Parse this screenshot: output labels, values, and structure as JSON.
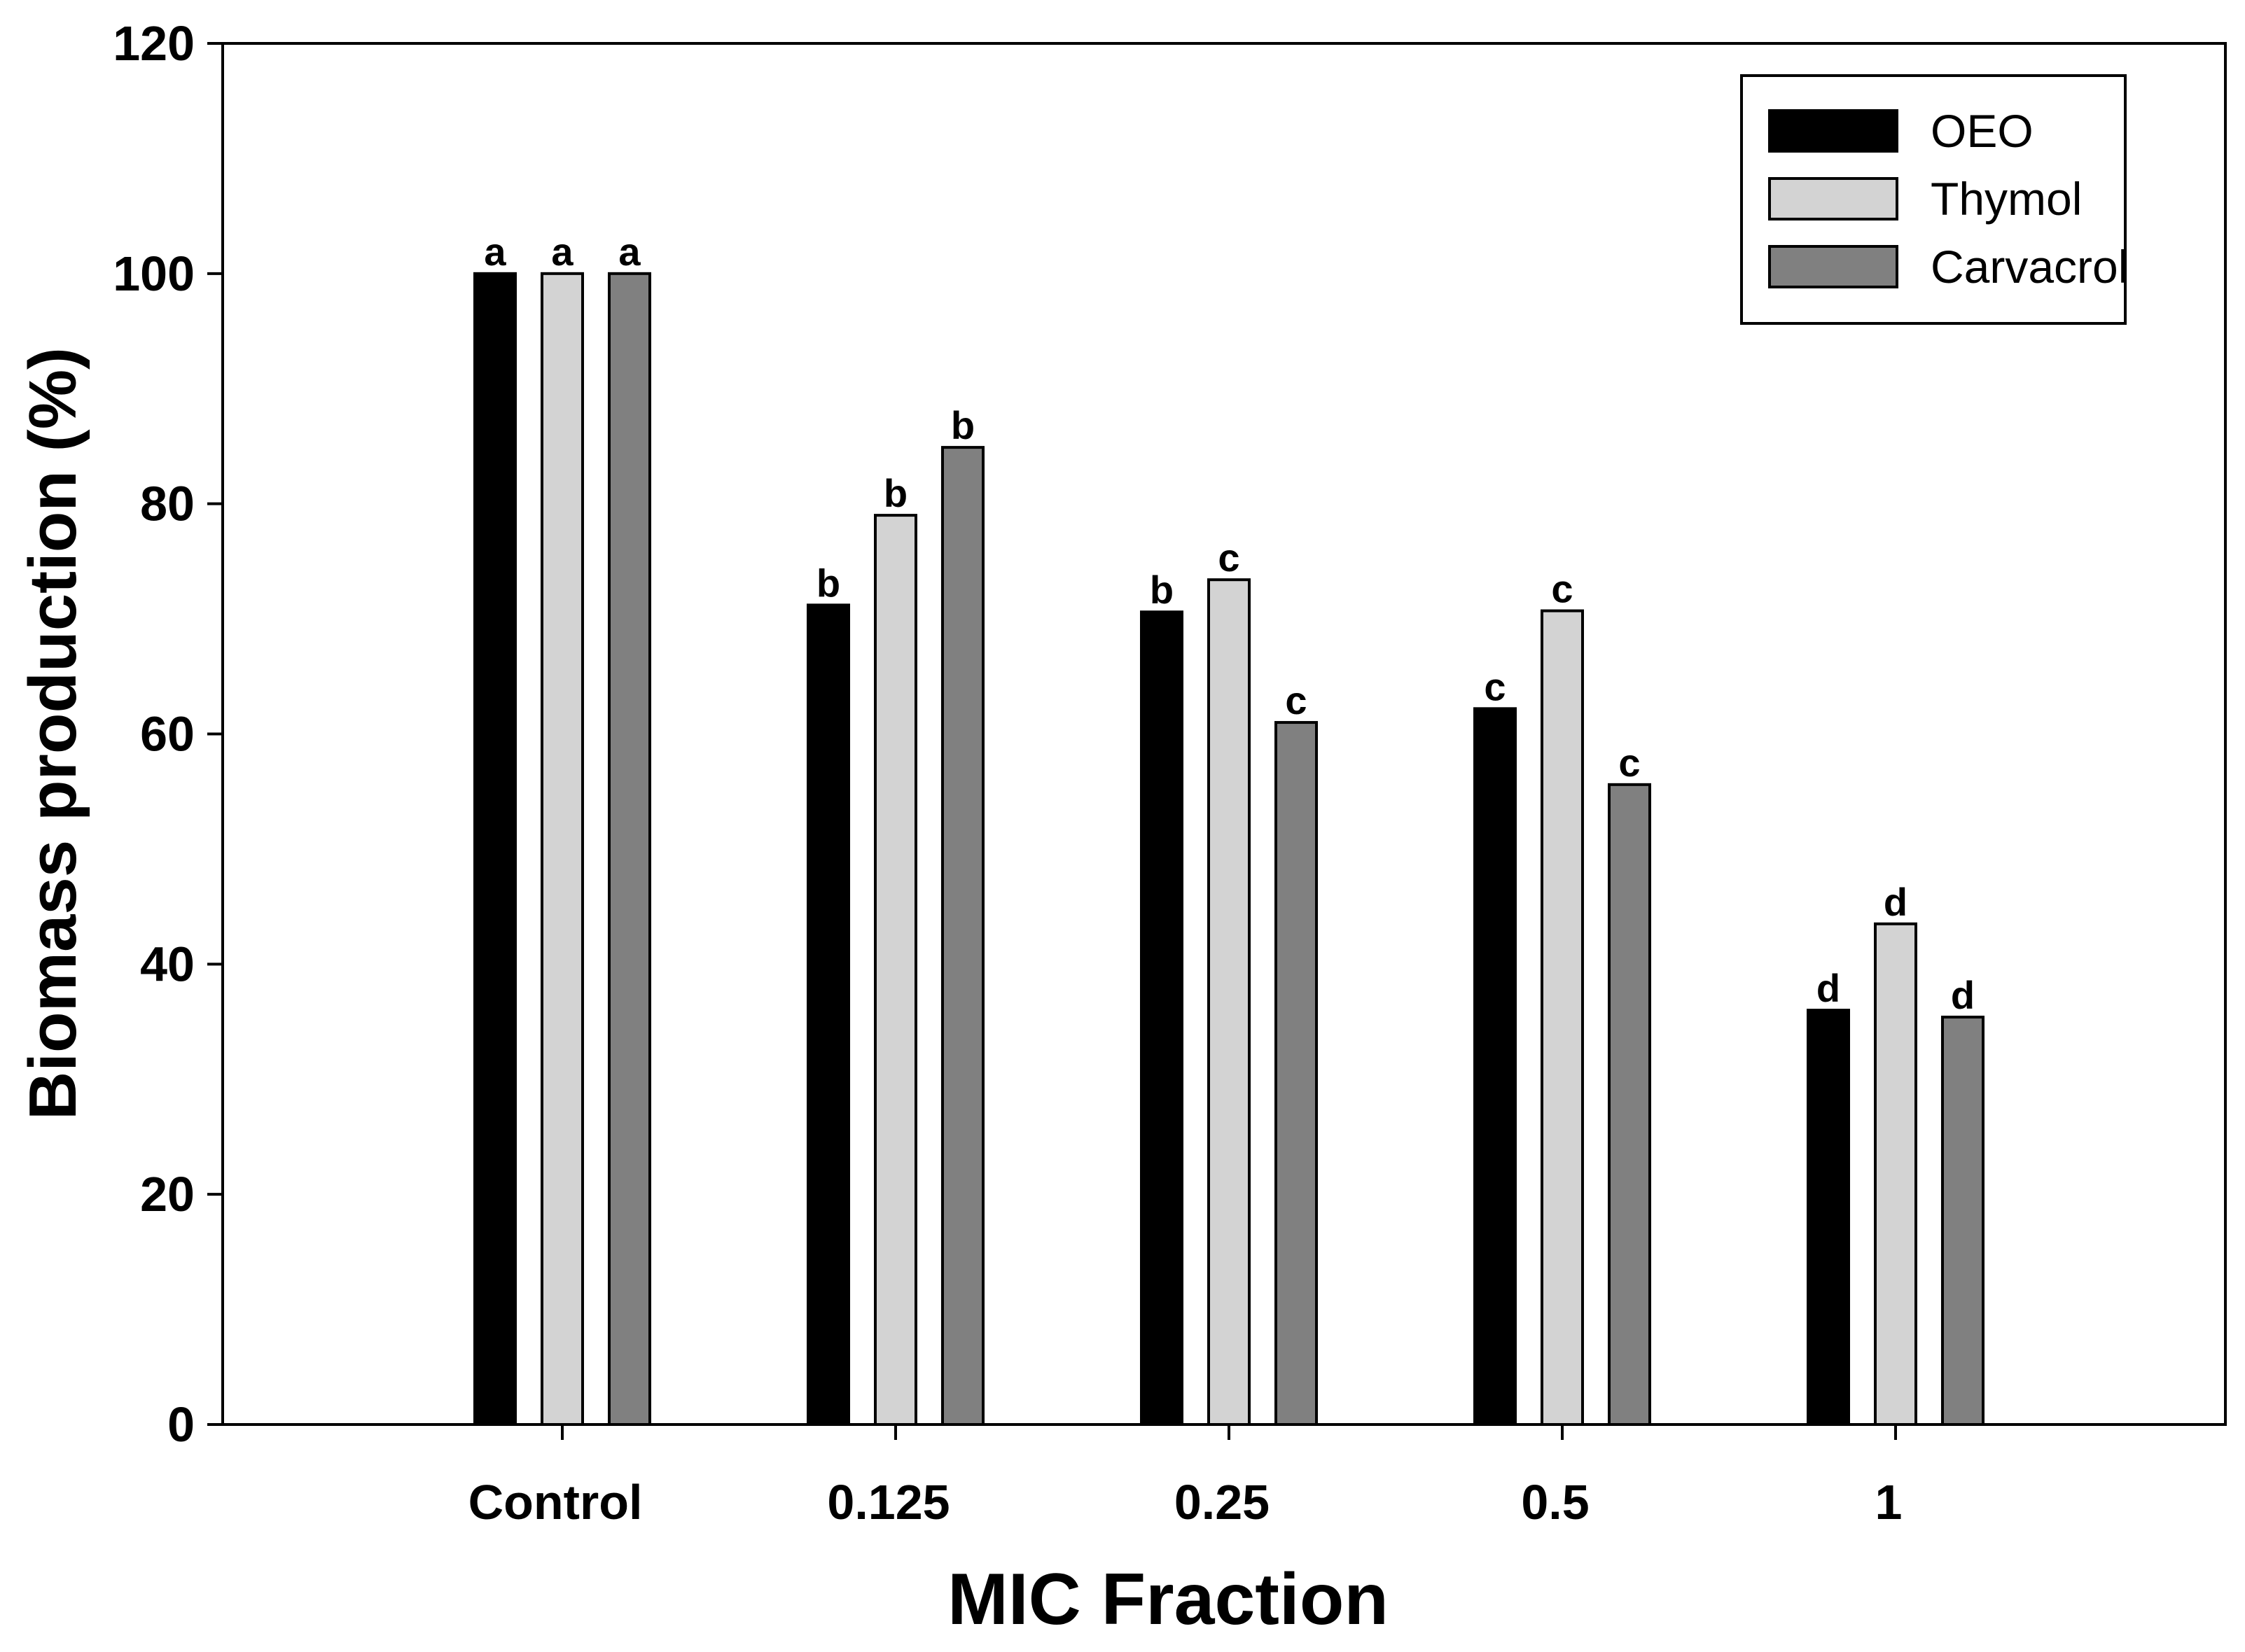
{
  "chart_data": {
    "type": "bar",
    "title": "",
    "xlabel": "MIC Fraction",
    "ylabel": "Biomass production (%)",
    "ylim": [
      0,
      120
    ],
    "yticks": [
      0,
      20,
      40,
      60,
      80,
      100,
      120
    ],
    "grid": false,
    "legend_position": "top-right",
    "categories": [
      "Control",
      "0.125",
      "0.25",
      "0.5",
      "1"
    ],
    "series": [
      {
        "name": "OEO",
        "color": "#000000",
        "values": [
          100,
          71.2,
          70.6,
          62.2,
          36.0
        ],
        "letters": [
          "a",
          "b",
          "b",
          "c",
          "d"
        ]
      },
      {
        "name": "Thymol",
        "color": "#d3d3d3",
        "values": [
          100,
          79.0,
          73.4,
          70.7,
          43.5
        ],
        "letters": [
          "a",
          "b",
          "c",
          "c",
          "d"
        ]
      },
      {
        "name": "Carvacrol",
        "color": "#808080",
        "values": [
          100,
          84.9,
          61.0,
          55.6,
          35.4
        ],
        "letters": [
          "a",
          "b",
          "c",
          "c",
          "d"
        ]
      }
    ]
  }
}
